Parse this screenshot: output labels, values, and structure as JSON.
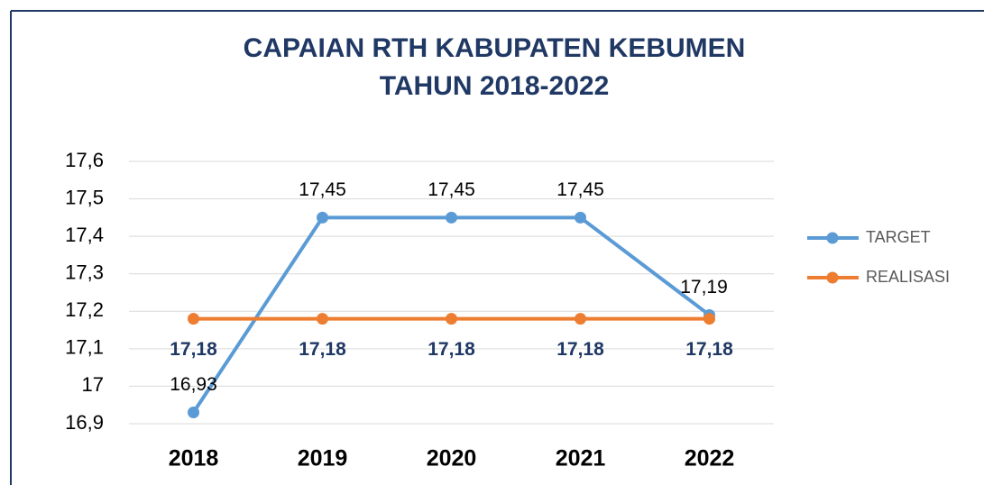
{
  "chart_data": {
    "type": "line",
    "title": [
      "CAPAIAN RTH KABUPATEN KEBUMEN",
      "TAHUN 2018-2022"
    ],
    "categories": [
      "2018",
      "2019",
      "2020",
      "2021",
      "2022"
    ],
    "series": [
      {
        "name": "TARGET",
        "color": "#5b9bd5",
        "values": [
          16.93,
          17.45,
          17.45,
          17.45,
          17.19
        ],
        "value_labels": [
          "16,93",
          "17,45",
          "17,45",
          "17,45",
          "17,19"
        ]
      },
      {
        "name": "REALISASI",
        "color": "#ed7d31",
        "values": [
          17.18,
          17.18,
          17.18,
          17.18,
          17.18
        ],
        "value_labels": [
          "17,18",
          "17,18",
          "17,18",
          "17,18",
          "17,18"
        ]
      }
    ],
    "ylim": [
      16.9,
      17.6
    ],
    "yticks": [
      {
        "value": 16.9,
        "label": "16,9"
      },
      17,
      {
        "value": 17.1,
        "label": "17,1"
      },
      {
        "value": 17.2,
        "label": "17,2"
      },
      {
        "value": 17.3,
        "label": "17,3"
      },
      {
        "value": 17.4,
        "label": "17,4"
      },
      {
        "value": 17.5,
        "label": "17,5"
      },
      {
        "value": 17.6,
        "label": "17,6"
      }
    ],
    "grid": true,
    "legend": "right"
  }
}
